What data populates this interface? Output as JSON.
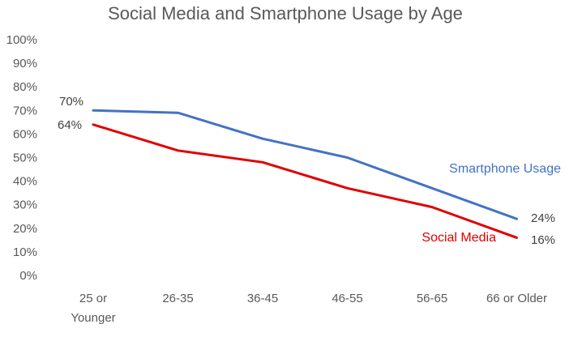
{
  "chart_data": {
    "type": "line",
    "title": "Social Media and Smartphone Usage by Age",
    "xlabel": "",
    "ylabel": "",
    "categories": [
      [
        "25 or",
        "Younger"
      ],
      [
        "26-35"
      ],
      [
        "36-45"
      ],
      [
        "46-55"
      ],
      [
        "56-65"
      ],
      [
        "66 or Older"
      ]
    ],
    "y_ticks": [
      "0%",
      "10%",
      "20%",
      "30%",
      "40%",
      "50%",
      "60%",
      "70%",
      "80%",
      "90%",
      "100%"
    ],
    "ylim": [
      0,
      100
    ],
    "grid": false,
    "legend": "none",
    "series": [
      {
        "name": "Smartphone Usage",
        "color": "#4472C4",
        "values": [
          70,
          69,
          58,
          50,
          37,
          24
        ],
        "labels": {
          "0": "70%",
          "5": "24%"
        }
      },
      {
        "name": "Social Media",
        "color": "#E00000",
        "values": [
          64,
          53,
          48,
          37,
          29,
          16
        ],
        "labels": {
          "0": "64%",
          "5": "16%"
        }
      }
    ]
  }
}
